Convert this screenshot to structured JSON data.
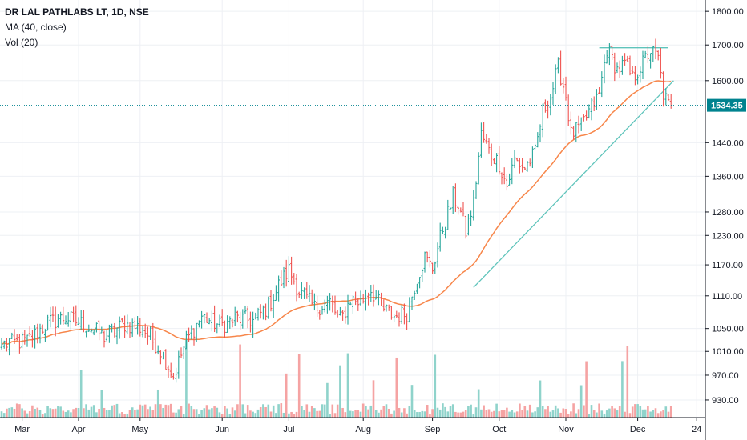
{
  "legend": {
    "title": "DR LAL PATHLABS LT, 1D, NSE",
    "ma": "MA (40, close)",
    "vol": "Vol (20)"
  },
  "colors": {
    "up": "#26a69a",
    "down": "#ef5350",
    "vol_up": "#8fd3cb",
    "vol_down": "#f5a3a3",
    "ma": "#f7864a",
    "trendline": "#5fc4bb",
    "last_price": "#00838f",
    "grid": "#eef0f4",
    "axis": "#131722"
  },
  "chart_data": {
    "type": "candlestick",
    "symbol": "DR LAL PATHLABS LT",
    "interval": "1D",
    "exchange": "NSE",
    "indicators": [
      "MA (40, close)",
      "Vol (20)"
    ],
    "x_ticks": [
      "Mar",
      "Apr",
      "May",
      "Jun",
      "Jul",
      "Aug",
      "Sep",
      "Oct",
      "Nov",
      "Dec",
      "24"
    ],
    "y_ticks": [
      "1800.00",
      "1700.00",
      "1600.00",
      "1534.35",
      "1440.00",
      "1360.00",
      "1280.00",
      "1230.00",
      "1170.00",
      "1110.00",
      "1050.00",
      "1010.00",
      "970.00",
      "930.00"
    ],
    "y_axis_scale": "log",
    "ylim": [
      905,
      1830
    ],
    "last_price": 1534.35,
    "last_price_label": "1534.35",
    "close_anchors": [
      [
        0,
        1022
      ],
      [
        10,
        1028
      ],
      [
        18,
        1060
      ],
      [
        25,
        1070
      ],
      [
        32,
        1058
      ],
      [
        40,
        1036
      ],
      [
        48,
        1058
      ],
      [
        55,
        1050
      ],
      [
        62,
        1012
      ],
      [
        67,
        968
      ],
      [
        72,
        1028
      ],
      [
        78,
        1072
      ],
      [
        85,
        1055
      ],
      [
        92,
        1068
      ],
      [
        98,
        1064
      ],
      [
        104,
        1090
      ],
      [
        108,
        1130
      ],
      [
        112,
        1160
      ],
      [
        116,
        1118
      ],
      [
        122,
        1088
      ],
      [
        128,
        1098
      ],
      [
        132,
        1062
      ],
      [
        136,
        1104
      ],
      [
        140,
        1098
      ],
      [
        144,
        1122
      ],
      [
        148,
        1088
      ],
      [
        153,
        1072
      ],
      [
        158,
        1078
      ],
      [
        162,
        1145
      ],
      [
        165,
        1185
      ],
      [
        168,
        1163
      ],
      [
        172,
        1245
      ],
      [
        176,
        1310
      ],
      [
        178,
        1298
      ],
      [
        181,
        1238
      ],
      [
        184,
        1298
      ],
      [
        187,
        1460
      ],
      [
        190,
        1420
      ],
      [
        194,
        1390
      ],
      [
        197,
        1338
      ],
      [
        200,
        1398
      ],
      [
        204,
        1380
      ],
      [
        208,
        1415
      ],
      [
        211,
        1520
      ],
      [
        214,
        1555
      ],
      [
        217,
        1640
      ],
      [
        220,
        1560
      ],
      [
        222,
        1460
      ],
      [
        226,
        1480
      ],
      [
        230,
        1530
      ],
      [
        233,
        1560
      ],
      [
        236,
        1690
      ],
      [
        240,
        1630
      ],
      [
        243,
        1645
      ],
      [
        246,
        1605
      ],
      [
        250,
        1648
      ],
      [
        253,
        1685
      ],
      [
        256,
        1660
      ],
      [
        258,
        1565
      ],
      [
        260,
        1534
      ]
    ],
    "trendlines": [
      {
        "from": [
          184,
          1126
        ],
        "to": [
          262,
          1600
        ]
      },
      {
        "from": [
          233,
          1692
        ],
        "to": [
          260,
          1692
        ]
      }
    ]
  }
}
